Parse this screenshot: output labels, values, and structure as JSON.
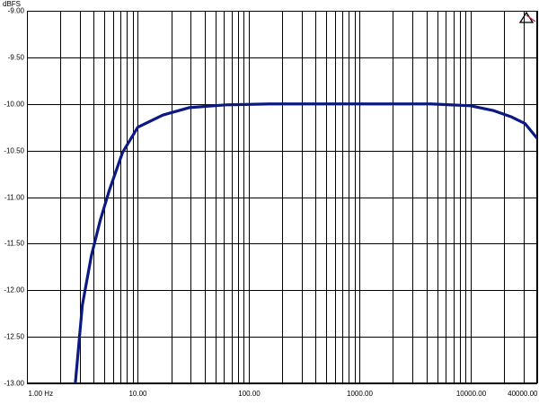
{
  "chart_data": {
    "type": "line",
    "y_unit": "dBFS",
    "xscale": "log",
    "xlim": [
      1,
      40000
    ],
    "ylim": [
      -13,
      -9
    ],
    "xticks": [
      {
        "value": 1,
        "label": "1.00 Hz"
      },
      {
        "value": 10,
        "label": "10.00"
      },
      {
        "value": 100,
        "label": "100.00"
      },
      {
        "value": 1000,
        "label": "1000.00"
      },
      {
        "value": 10000,
        "label": "10000.00"
      },
      {
        "value": 40000,
        "label": "40000.00"
      }
    ],
    "xgrid": [
      2,
      3,
      4,
      5,
      6,
      7,
      8,
      9,
      20,
      30,
      40,
      50,
      60,
      70,
      80,
      90,
      200,
      300,
      400,
      500,
      600,
      700,
      800,
      900,
      2000,
      3000,
      4000,
      5000,
      6000,
      7000,
      8000,
      9000,
      20000,
      30000
    ],
    "yticks": [
      {
        "value": -9,
        "label": "-9.00"
      },
      {
        "value": -9.5,
        "label": "-9.50"
      },
      {
        "value": -10,
        "label": "-10.00"
      },
      {
        "value": -10.5,
        "label": "-10.50"
      },
      {
        "value": -11,
        "label": "-11.00"
      },
      {
        "value": -11.5,
        "label": "-11.50"
      },
      {
        "value": -12,
        "label": "-12.00"
      },
      {
        "value": -12.5,
        "label": "-12.50"
      },
      {
        "value": -13,
        "label": "-13.00"
      }
    ],
    "grid": true,
    "x": [
      2.73,
      3.16,
      3.81,
      4.58,
      5.52,
      7.29,
      10,
      16.8,
      29,
      62,
      156,
      1000,
      4400,
      10000,
      16000,
      23500,
      31000,
      40000
    ],
    "series": [
      {
        "color": "#0b1a82",
        "values": [
          -13,
          -12.16,
          -11.63,
          -11.25,
          -10.93,
          -10.52,
          -10.25,
          -10.12,
          -10.04,
          -10.01,
          -10,
          -10,
          -10,
          -10.02,
          -10.07,
          -10.14,
          -10.21,
          -10.37
        ]
      }
    ]
  }
}
